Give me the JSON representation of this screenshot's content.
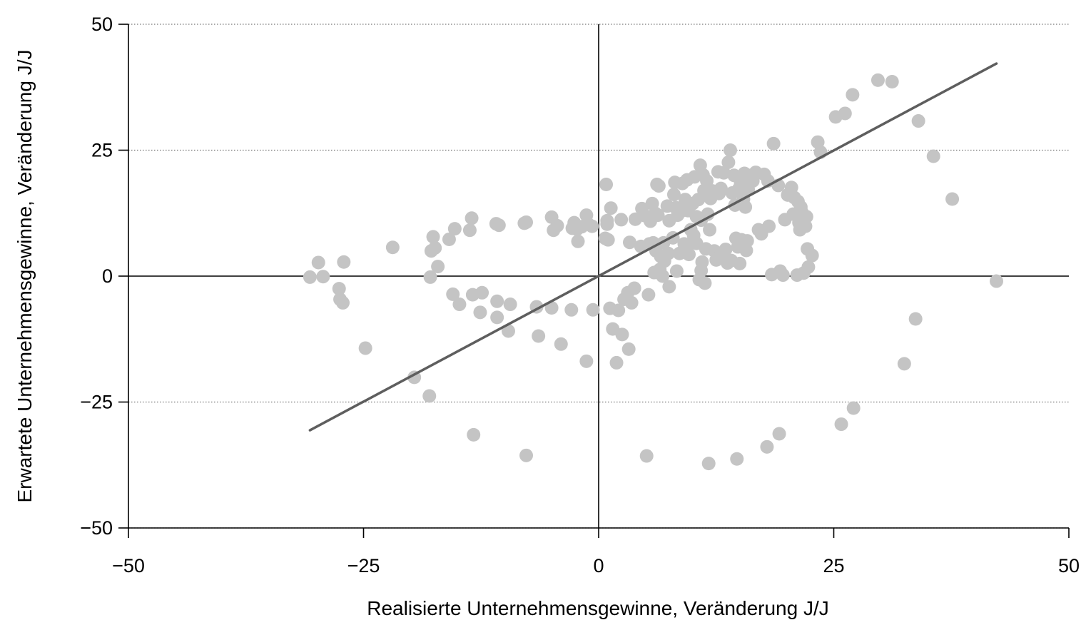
{
  "chart_data": {
    "type": "scatter",
    "title": "",
    "xlabel": "Realisierte Unternehmensgewinne, Veränderung J/J",
    "ylabel": "Erwartete Unternehmensgewinne, Veränderung J/J",
    "xlim": [
      -50,
      50
    ],
    "ylim": [
      -50,
      50
    ],
    "xticks": [
      -50,
      -25,
      0,
      25,
      50
    ],
    "yticks": [
      -50,
      -25,
      0,
      25,
      50
    ],
    "xtick_labels": [
      "−50",
      "−25",
      "0",
      "25",
      "50"
    ],
    "ytick_labels": [
      "−50",
      "−25",
      "0",
      "25",
      "50"
    ],
    "grid": "horizontal dotted at y ticks",
    "zero_lines": true,
    "colors": {
      "points": "#c4c4c4",
      "fit_line": "#5e5e5e",
      "axes": "#000000",
      "grid": "#777777"
    },
    "fit_line": {
      "x": [
        -30.7,
        42.3
      ],
      "y": [
        -30.6,
        42.2
      ]
    },
    "points": [
      [
        -30.7,
        -0.2
      ],
      [
        -29.8,
        2.7
      ],
      [
        -29.3,
        -0.1
      ],
      [
        -27.6,
        -2.5
      ],
      [
        -27.5,
        -4.6
      ],
      [
        -27.2,
        -5.3
      ],
      [
        -27.1,
        2.8
      ],
      [
        -24.8,
        -14.3
      ],
      [
        -21.9,
        5.7
      ],
      [
        -19.6,
        -20.1
      ],
      [
        -18.0,
        -23.8
      ],
      [
        -17.9,
        -0.2
      ],
      [
        -17.8,
        5.0
      ],
      [
        -17.6,
        7.8
      ],
      [
        -17.4,
        5.6
      ],
      [
        -17.1,
        1.9
      ],
      [
        -15.9,
        7.3
      ],
      [
        -15.5,
        -3.6
      ],
      [
        -15.3,
        9.4
      ],
      [
        -14.8,
        -5.6
      ],
      [
        -13.7,
        9.1
      ],
      [
        -13.5,
        11.5
      ],
      [
        -13.4,
        -3.7
      ],
      [
        -13.3,
        -31.5
      ],
      [
        -12.6,
        -7.2
      ],
      [
        -12.4,
        -3.3
      ],
      [
        -10.9,
        10.4
      ],
      [
        -10.8,
        -5.0
      ],
      [
        -10.8,
        -8.2
      ],
      [
        -10.6,
        10.1
      ],
      [
        -9.6,
        -10.9
      ],
      [
        -9.4,
        -5.6
      ],
      [
        -7.9,
        10.5
      ],
      [
        -7.7,
        10.7
      ],
      [
        -7.7,
        -35.6
      ],
      [
        -6.6,
        -6.1
      ],
      [
        -6.4,
        -11.9
      ],
      [
        -5.0,
        11.7
      ],
      [
        -5.0,
        -6.3
      ],
      [
        -4.8,
        9.1
      ],
      [
        -4.4,
        10.0
      ],
      [
        -4.0,
        -13.5
      ],
      [
        -2.9,
        -6.7
      ],
      [
        -2.8,
        9.5
      ],
      [
        -2.6,
        10.6
      ],
      [
        -2.3,
        9.3
      ],
      [
        -2.2,
        6.9
      ],
      [
        -1.8,
        9.8
      ],
      [
        -1.3,
        12.1
      ],
      [
        -1.3,
        -16.9
      ],
      [
        -1.2,
        10.5
      ],
      [
        -0.7,
        9.9
      ],
      [
        -0.6,
        -6.7
      ],
      [
        0.7,
        7.5
      ],
      [
        0.8,
        18.2
      ],
      [
        0.9,
        10.3
      ],
      [
        0.9,
        11.0
      ],
      [
        1.0,
        7.2
      ],
      [
        1.2,
        -6.4
      ],
      [
        1.3,
        13.5
      ],
      [
        1.5,
        -10.5
      ],
      [
        1.9,
        -17.2
      ],
      [
        2.1,
        -6.8
      ],
      [
        2.4,
        11.2
      ],
      [
        2.5,
        -11.6
      ],
      [
        2.7,
        -4.6
      ],
      [
        3.1,
        -3.3
      ],
      [
        3.2,
        -14.5
      ],
      [
        3.3,
        6.7
      ],
      [
        3.5,
        -5.3
      ],
      [
        3.8,
        -2.4
      ],
      [
        3.9,
        11.3
      ],
      [
        4.5,
        5.9
      ],
      [
        4.6,
        13.4
      ],
      [
        4.9,
        12.0
      ],
      [
        5.1,
        -35.7
      ],
      [
        5.3,
        -3.7
      ],
      [
        5.4,
        6.4
      ],
      [
        5.5,
        10.9
      ],
      [
        5.7,
        14.4
      ],
      [
        5.8,
        6.6
      ],
      [
        5.9,
        0.7
      ],
      [
        6.0,
        12.5
      ],
      [
        6.1,
        5.0
      ],
      [
        6.2,
        18.2
      ],
      [
        6.3,
        12.1
      ],
      [
        6.4,
        17.9
      ],
      [
        6.5,
        1.3
      ],
      [
        6.6,
        3.9
      ],
      [
        6.8,
        0.0
      ],
      [
        6.9,
        6.6
      ],
      [
        7.0,
        3.0
      ],
      [
        7.3,
        13.9
      ],
      [
        7.4,
        4.5
      ],
      [
        7.5,
        -2.1
      ],
      [
        7.5,
        11.0
      ],
      [
        7.9,
        7.6
      ],
      [
        8.0,
        16.2
      ],
      [
        8.1,
        18.6
      ],
      [
        8.2,
        13.6
      ],
      [
        8.3,
        1.0
      ],
      [
        8.4,
        12.1
      ],
      [
        8.6,
        4.5
      ],
      [
        8.7,
        12.8
      ],
      [
        8.9,
        18.4
      ],
      [
        9.1,
        6.4
      ],
      [
        9.2,
        15.2
      ],
      [
        9.3,
        5.4
      ],
      [
        9.4,
        19.1
      ],
      [
        9.5,
        13.0
      ],
      [
        9.6,
        4.3
      ],
      [
        9.8,
        9.2
      ],
      [
        10.0,
        14.4
      ],
      [
        10.1,
        8.1
      ],
      [
        10.2,
        19.7
      ],
      [
        10.4,
        6.5
      ],
      [
        10.4,
        11.8
      ],
      [
        10.6,
        15.2
      ],
      [
        10.7,
        -0.7
      ],
      [
        10.8,
        22.0
      ],
      [
        10.9,
        11.1
      ],
      [
        10.9,
        1.1
      ],
      [
        11.0,
        2.8
      ],
      [
        11.1,
        20.1
      ],
      [
        11.2,
        17.0
      ],
      [
        11.3,
        -1.4
      ],
      [
        11.4,
        5.4
      ],
      [
        11.5,
        18.9
      ],
      [
        11.6,
        12.3
      ],
      [
        11.7,
        -37.2
      ],
      [
        11.8,
        9.2
      ],
      [
        11.9,
        15.4
      ],
      [
        12.1,
        16.9
      ],
      [
        12.3,
        5.0
      ],
      [
        12.5,
        3.2
      ],
      [
        12.7,
        20.7
      ],
      [
        12.8,
        16.4
      ],
      [
        12.9,
        3.9
      ],
      [
        13.0,
        17.4
      ],
      [
        13.3,
        20.5
      ],
      [
        13.5,
        5.3
      ],
      [
        13.7,
        2.6
      ],
      [
        13.8,
        22.6
      ],
      [
        14.0,
        25.0
      ],
      [
        14.1,
        3.1
      ],
      [
        14.2,
        16.5
      ],
      [
        14.4,
        20.0
      ],
      [
        14.5,
        14.1
      ],
      [
        14.6,
        7.5
      ],
      [
        14.7,
        -36.3
      ],
      [
        14.8,
        5.8
      ],
      [
        14.9,
        17.3
      ],
      [
        15.0,
        2.5
      ],
      [
        15.1,
        18.5
      ],
      [
        15.2,
        7.2
      ],
      [
        15.4,
        15.3
      ],
      [
        15.5,
        20.4
      ],
      [
        15.6,
        13.7
      ],
      [
        15.7,
        5.1
      ],
      [
        15.8,
        7.0
      ],
      [
        15.9,
        17.2
      ],
      [
        16.2,
        20.0
      ],
      [
        16.4,
        18.9
      ],
      [
        16.7,
        20.6
      ],
      [
        17.0,
        9.2
      ],
      [
        17.3,
        8.4
      ],
      [
        17.6,
        20.2
      ],
      [
        17.9,
        -33.9
      ],
      [
        18.0,
        18.9
      ],
      [
        18.1,
        9.9
      ],
      [
        18.4,
        0.3
      ],
      [
        18.6,
        26.3
      ],
      [
        19.1,
        18.0
      ],
      [
        19.2,
        -31.3
      ],
      [
        19.3,
        1.0
      ],
      [
        19.6,
        0.2
      ],
      [
        19.8,
        11.2
      ],
      [
        20.1,
        16.1
      ],
      [
        20.5,
        17.6
      ],
      [
        20.7,
        12.3
      ],
      [
        20.8,
        15.6
      ],
      [
        21.1,
        0.2
      ],
      [
        21.2,
        14.8
      ],
      [
        21.3,
        10.6
      ],
      [
        21.4,
        9.2
      ],
      [
        21.5,
        13.7
      ],
      [
        21.6,
        12.7
      ],
      [
        21.8,
        0.6
      ],
      [
        22.0,
        9.9
      ],
      [
        22.1,
        11.8
      ],
      [
        22.2,
        5.4
      ],
      [
        22.3,
        1.8
      ],
      [
        22.7,
        4.1
      ],
      [
        23.3,
        26.6
      ],
      [
        23.6,
        24.6
      ],
      [
        25.2,
        31.6
      ],
      [
        25.8,
        -29.4
      ],
      [
        26.2,
        32.3
      ],
      [
        27.0,
        36.0
      ],
      [
        27.1,
        -26.2
      ],
      [
        29.7,
        38.9
      ],
      [
        31.2,
        38.6
      ],
      [
        32.5,
        -17.4
      ],
      [
        33.7,
        -8.5
      ],
      [
        34.0,
        30.8
      ],
      [
        35.6,
        23.8
      ],
      [
        37.6,
        15.3
      ],
      [
        42.3,
        -1.0
      ]
    ]
  }
}
